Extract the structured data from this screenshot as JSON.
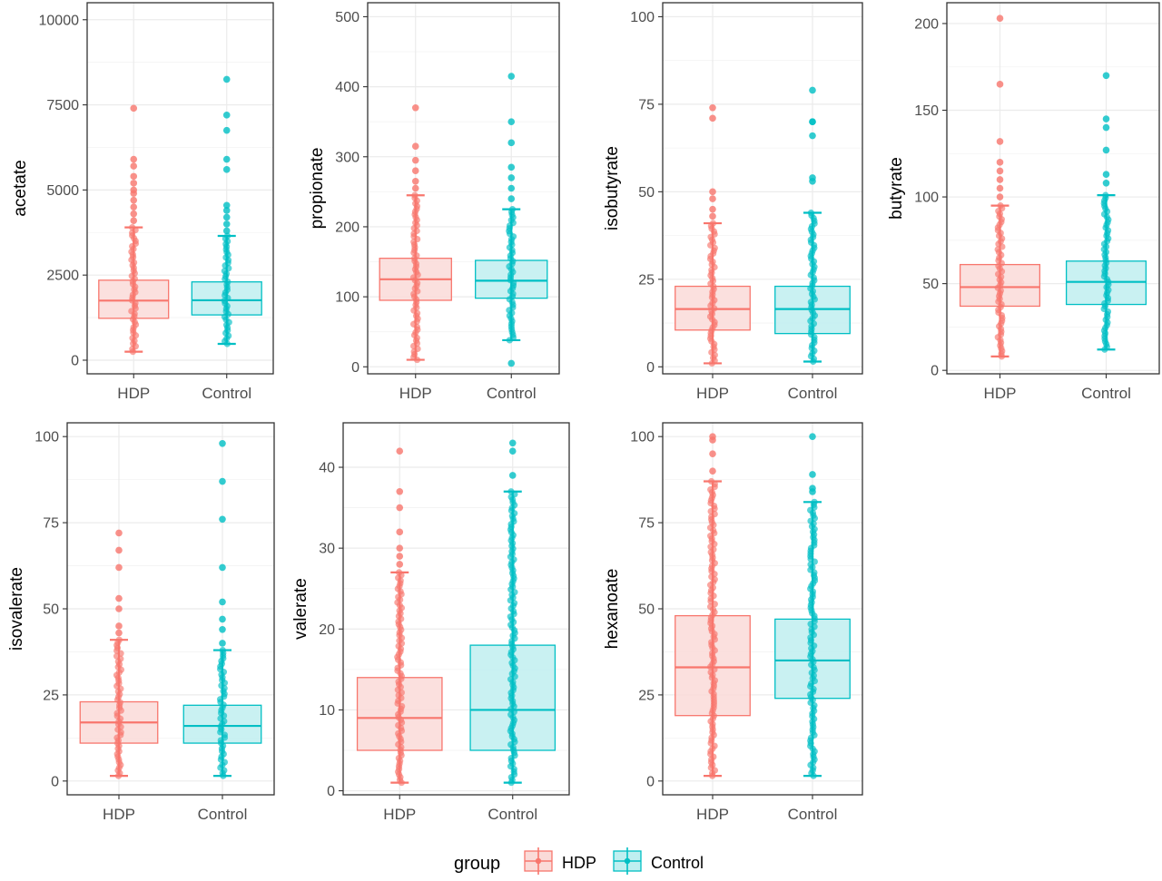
{
  "colors": {
    "hdp": "#F8766D",
    "control": "#00BFC4",
    "hdp_fill": "#FADBD8",
    "control_fill": "#BFEFF0",
    "grid": "#EBEBEB",
    "panel_border": "#333333",
    "tick_text": "#4D4D4D"
  },
  "legend": {
    "title": "group",
    "items": [
      "HDP",
      "Control"
    ],
    "placement": "bottom"
  },
  "chart_data": [
    {
      "type": "boxplot",
      "ylabel": "acetate",
      "categories": [
        "HDP",
        "Control"
      ],
      "ylim": [
        -400,
        10500
      ],
      "yticks": [
        0,
        2500,
        5000,
        7500,
        10000
      ],
      "boxes": [
        {
          "group": "HDP",
          "whisker_low": 250,
          "q1": 1230,
          "median": 1750,
          "q3": 2350,
          "whisker_high": 3900,
          "outliers": [
            4100,
            4300,
            4500,
            4700,
            4900,
            5000,
            5200,
            5400,
            5700,
            5900,
            7400
          ]
        },
        {
          "group": "Control",
          "whisker_low": 480,
          "q1": 1330,
          "median": 1760,
          "q3": 2300,
          "whisker_high": 3650,
          "outliers": [
            3800,
            4000,
            4200,
            4400,
            4550,
            5600,
            5900,
            6750,
            7200,
            8250
          ]
        }
      ]
    },
    {
      "type": "boxplot",
      "ylabel": "propionate",
      "categories": [
        "HDP",
        "Control"
      ],
      "ylim": [
        -10,
        520
      ],
      "yticks": [
        0,
        100,
        200,
        300,
        400,
        500
      ],
      "boxes": [
        {
          "group": "HDP",
          "whisker_low": 10,
          "q1": 95,
          "median": 125,
          "q3": 155,
          "whisker_high": 245,
          "outliers": [
            255,
            265,
            280,
            295,
            315,
            370
          ]
        },
        {
          "group": "Control",
          "whisker_low": 38,
          "q1": 98,
          "median": 123,
          "q3": 152,
          "whisker_high": 225,
          "outliers": [
            5,
            240,
            255,
            270,
            285,
            320,
            350,
            415
          ]
        }
      ]
    },
    {
      "type": "boxplot",
      "ylabel": "isobutyrate",
      "categories": [
        "HDP",
        "Control"
      ],
      "ylim": [
        -2,
        104
      ],
      "yticks": [
        0,
        25,
        50,
        75,
        100
      ],
      "boxes": [
        {
          "group": "HDP",
          "whisker_low": 1,
          "q1": 10.5,
          "median": 16.5,
          "q3": 23,
          "whisker_high": 41,
          "outliers": [
            43,
            45,
            48,
            50,
            71,
            74
          ]
        },
        {
          "group": "Control",
          "whisker_low": 1.5,
          "q1": 9.5,
          "median": 16.5,
          "q3": 23,
          "whisker_high": 44,
          "outliers": [
            53,
            54,
            66,
            70,
            70,
            79
          ]
        }
      ]
    },
    {
      "type": "boxplot",
      "ylabel": "butyrate",
      "categories": [
        "HDP",
        "Control"
      ],
      "ylim": [
        -2,
        212
      ],
      "yticks": [
        0,
        50,
        100,
        150,
        200
      ],
      "boxes": [
        {
          "group": "HDP",
          "whisker_low": 8,
          "q1": 37,
          "median": 48,
          "q3": 61,
          "whisker_high": 95,
          "outliers": [
            100,
            105,
            110,
            115,
            120,
            132,
            165,
            203
          ]
        },
        {
          "group": "Control",
          "whisker_low": 12,
          "q1": 38,
          "median": 51,
          "q3": 63,
          "whisker_high": 101,
          "outliers": [
            108,
            113,
            127,
            140,
            145,
            170
          ]
        }
      ]
    },
    {
      "type": "boxplot",
      "ylabel": "isovalerate",
      "categories": [
        "HDP",
        "Control"
      ],
      "ylim": [
        -4,
        104
      ],
      "yticks": [
        0,
        25,
        50,
        75,
        100
      ],
      "boxes": [
        {
          "group": "HDP",
          "whisker_low": 1.5,
          "q1": 11,
          "median": 17,
          "q3": 23,
          "whisker_high": 41,
          "outliers": [
            43,
            45,
            50,
            53,
            62,
            67,
            72
          ]
        },
        {
          "group": "Control",
          "whisker_low": 1.5,
          "q1": 11,
          "median": 16,
          "q3": 22,
          "whisker_high": 38,
          "outliers": [
            40,
            44,
            47,
            52,
            62,
            76,
            87,
            98
          ]
        }
      ]
    },
    {
      "type": "boxplot",
      "ylabel": "valerate",
      "categories": [
        "HDP",
        "Control"
      ],
      "ylim": [
        -0.5,
        45.5
      ],
      "yticks": [
        0,
        10,
        20,
        30,
        40
      ],
      "boxes": [
        {
          "group": "HDP",
          "whisker_low": 1,
          "q1": 5,
          "median": 9,
          "q3": 14,
          "whisker_high": 27,
          "outliers": [
            28,
            29,
            30,
            32,
            35,
            37,
            42
          ]
        },
        {
          "group": "Control",
          "whisker_low": 1,
          "q1": 5,
          "median": 10,
          "q3": 18,
          "whisker_high": 37,
          "outliers": [
            39,
            42,
            43
          ]
        }
      ]
    },
    {
      "type": "boxplot",
      "ylabel": "hexanoate",
      "categories": [
        "HDP",
        "Control"
      ],
      "ylim": [
        -4,
        104
      ],
      "yticks": [
        0,
        25,
        50,
        75,
        100
      ],
      "boxes": [
        {
          "group": "HDP",
          "whisker_low": 1.5,
          "q1": 19,
          "median": 33,
          "q3": 48,
          "whisker_high": 87,
          "outliers": [
            90,
            95,
            99,
            100
          ]
        },
        {
          "group": "Control",
          "whisker_low": 1.5,
          "q1": 24,
          "median": 35,
          "q3": 47,
          "whisker_high": 81,
          "outliers": [
            84,
            85,
            89,
            100
          ]
        }
      ]
    }
  ]
}
